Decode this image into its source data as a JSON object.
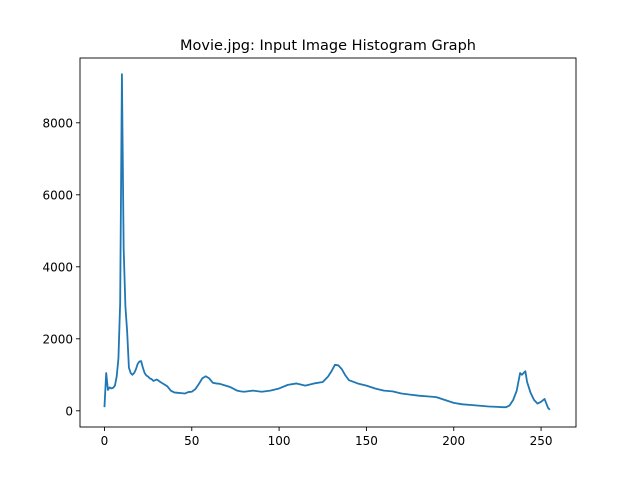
{
  "chart_data": {
    "type": "line",
    "title": "Movie.jpg: Input Image Histogram Graph",
    "xlabel": "",
    "ylabel": "",
    "xlim": [
      -14,
      270
    ],
    "ylim": [
      -450,
      9800
    ],
    "x_ticks": [
      0,
      50,
      100,
      150,
      200,
      250
    ],
    "y_ticks": [
      0,
      2000,
      4000,
      6000,
      8000
    ],
    "grid": false,
    "legend": "none",
    "colors": {
      "line": "#1f77b4",
      "axis": "#000000",
      "background": "#ffffff"
    },
    "series": [
      {
        "x": [
          0,
          1,
          2,
          3,
          4,
          5,
          6,
          7,
          8,
          9,
          10,
          11,
          12,
          13,
          14,
          15,
          16,
          17,
          18,
          19,
          20,
          21,
          22,
          23,
          24,
          25,
          26,
          27,
          28,
          29,
          30,
          32,
          34,
          36,
          38,
          40,
          42,
          44,
          46,
          48,
          50,
          52,
          54,
          56,
          58,
          60,
          62,
          64,
          66,
          68,
          70,
          72,
          74,
          76,
          78,
          80,
          85,
          90,
          95,
          100,
          105,
          110,
          115,
          120,
          125,
          128,
          130,
          132,
          134,
          136,
          138,
          140,
          145,
          150,
          155,
          160,
          165,
          170,
          175,
          180,
          185,
          190,
          195,
          200,
          205,
          210,
          215,
          220,
          225,
          228,
          230,
          232,
          234,
          236,
          237,
          238,
          239,
          240,
          241,
          242,
          244,
          246,
          248,
          250,
          252,
          254,
          255
        ],
        "values": [
          100,
          1050,
          580,
          650,
          620,
          640,
          700,
          950,
          1450,
          3000,
          9350,
          4500,
          2900,
          2200,
          1200,
          1050,
          1000,
          1050,
          1150,
          1300,
          1370,
          1380,
          1200,
          1050,
          980,
          950,
          900,
          880,
          830,
          850,
          870,
          800,
          740,
          680,
          560,
          510,
          500,
          490,
          480,
          520,
          530,
          600,
          740,
          900,
          960,
          900,
          780,
          760,
          750,
          720,
          690,
          660,
          610,
          560,
          540,
          530,
          560,
          530,
          560,
          620,
          720,
          760,
          700,
          760,
          800,
          950,
          1100,
          1280,
          1260,
          1150,
          980,
          850,
          760,
          700,
          620,
          560,
          540,
          480,
          450,
          420,
          400,
          380,
          300,
          220,
          180,
          160,
          140,
          120,
          110,
          100,
          100,
          150,
          300,
          550,
          800,
          1050,
          1000,
          1050,
          1100,
          800,
          500,
          300,
          200,
          250,
          330,
          80,
          30
        ],
        "x_ignore_note": null
      }
    ]
  }
}
